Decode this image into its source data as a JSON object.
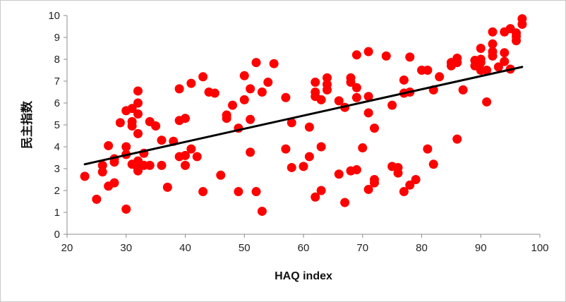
{
  "chart_data": {
    "type": "scatter",
    "title": "",
    "xlabel": "HAQ index",
    "ylabel": "民主指数",
    "xlim": [
      20,
      100
    ],
    "ylim": [
      0,
      10
    ],
    "x_ticks": [
      "20",
      "30",
      "40",
      "50",
      "60",
      "70",
      "80",
      "90",
      "100"
    ],
    "y_ticks": [
      "0",
      "1",
      "2",
      "3",
      "4",
      "5",
      "6",
      "7",
      "8",
      "9",
      "10"
    ],
    "grid": false,
    "legend": "none",
    "marker_color": "#ff0000",
    "trendline": {
      "type": "linear",
      "color": "#000000",
      "x": [
        23,
        97
      ],
      "y": [
        3.2,
        7.65
      ]
    },
    "points": [
      [
        23,
        2.65
      ],
      [
        25,
        1.6
      ],
      [
        26,
        3.15
      ],
      [
        26,
        2.85
      ],
      [
        27,
        4.05
      ],
      [
        27,
        2.2
      ],
      [
        28,
        3.45
      ],
      [
        28,
        3.3
      ],
      [
        28,
        2.35
      ],
      [
        29,
        5.1
      ],
      [
        30,
        5.65
      ],
      [
        30,
        4.0
      ],
      [
        30,
        3.65
      ],
      [
        30,
        1.15
      ],
      [
        31,
        5.75
      ],
      [
        31,
        5.15
      ],
      [
        31,
        4.95
      ],
      [
        31,
        3.2
      ],
      [
        32,
        6.55
      ],
      [
        32,
        6.0
      ],
      [
        32,
        5.5
      ],
      [
        32,
        4.6
      ],
      [
        32,
        3.35
      ],
      [
        32,
        3.0
      ],
      [
        32,
        2.9
      ],
      [
        33,
        3.7
      ],
      [
        33,
        3.15
      ],
      [
        34,
        5.15
      ],
      [
        34,
        3.15
      ],
      [
        35,
        4.95
      ],
      [
        36,
        4.3
      ],
      [
        36,
        3.15
      ],
      [
        37,
        2.15
      ],
      [
        38,
        4.25
      ],
      [
        39,
        6.65
      ],
      [
        39,
        5.2
      ],
      [
        39,
        3.55
      ],
      [
        40,
        5.3
      ],
      [
        40,
        3.6
      ],
      [
        40,
        3.15
      ],
      [
        41,
        6.9
      ],
      [
        41,
        3.9
      ],
      [
        42,
        3.55
      ],
      [
        43,
        7.2
      ],
      [
        43,
        1.95
      ],
      [
        44,
        6.5
      ],
      [
        45,
        6.45
      ],
      [
        46,
        2.7
      ],
      [
        47,
        5.45
      ],
      [
        47,
        5.3
      ],
      [
        48,
        5.9
      ],
      [
        49,
        4.85
      ],
      [
        49,
        1.95
      ],
      [
        50,
        7.25
      ],
      [
        50,
        6.15
      ],
      [
        51,
        6.65
      ],
      [
        51,
        5.25
      ],
      [
        51,
        3.75
      ],
      [
        52,
        7.85
      ],
      [
        52,
        1.95
      ],
      [
        53,
        6.5
      ],
      [
        53,
        1.05
      ],
      [
        54,
        6.95
      ],
      [
        55,
        7.8
      ],
      [
        57,
        6.25
      ],
      [
        57,
        3.9
      ],
      [
        58,
        5.1
      ],
      [
        58,
        3.05
      ],
      [
        60,
        3.1
      ],
      [
        61,
        4.9
      ],
      [
        61,
        3.55
      ],
      [
        62,
        6.95
      ],
      [
        62,
        6.5
      ],
      [
        62,
        6.3
      ],
      [
        62,
        1.7
      ],
      [
        63,
        6.15
      ],
      [
        63,
        4.0
      ],
      [
        63,
        2.0
      ],
      [
        64,
        7.15
      ],
      [
        64,
        6.85
      ],
      [
        64,
        6.6
      ],
      [
        66,
        6.1
      ],
      [
        66,
        2.75
      ],
      [
        67,
        5.8
      ],
      [
        67,
        1.45
      ],
      [
        68,
        7.15
      ],
      [
        68,
        6.95
      ],
      [
        68,
        2.9
      ],
      [
        69,
        8.2
      ],
      [
        69,
        6.7
      ],
      [
        69,
        6.25
      ],
      [
        69,
        2.95
      ],
      [
        70,
        3.95
      ],
      [
        71,
        8.35
      ],
      [
        71,
        6.3
      ],
      [
        71,
        5.55
      ],
      [
        71,
        2.05
      ],
      [
        72,
        4.85
      ],
      [
        72,
        2.5
      ],
      [
        72,
        2.35
      ],
      [
        74,
        8.15
      ],
      [
        75,
        5.9
      ],
      [
        75,
        3.1
      ],
      [
        76,
        3.05
      ],
      [
        76,
        2.8
      ],
      [
        77,
        7.05
      ],
      [
        77,
        6.45
      ],
      [
        77,
        1.95
      ],
      [
        78,
        8.1
      ],
      [
        78,
        6.5
      ],
      [
        78,
        2.25
      ],
      [
        79,
        2.5
      ],
      [
        80,
        7.5
      ],
      [
        81,
        7.5
      ],
      [
        81,
        3.9
      ],
      [
        82,
        6.6
      ],
      [
        82,
        3.2
      ],
      [
        83,
        7.2
      ],
      [
        85,
        7.85
      ],
      [
        85,
        7.7
      ],
      [
        86,
        8.05
      ],
      [
        86,
        7.85
      ],
      [
        86,
        4.35
      ],
      [
        87,
        6.6
      ],
      [
        89,
        7.95
      ],
      [
        89,
        7.7
      ],
      [
        90,
        8.5
      ],
      [
        90,
        8.0
      ],
      [
        90,
        7.85
      ],
      [
        90,
        7.5
      ],
      [
        91,
        7.5
      ],
      [
        91,
        6.05
      ],
      [
        92,
        9.25
      ],
      [
        92,
        8.7
      ],
      [
        92,
        8.35
      ],
      [
        92,
        8.15
      ],
      [
        93,
        7.65
      ],
      [
        94,
        9.25
      ],
      [
        94,
        8.3
      ],
      [
        94,
        7.9
      ],
      [
        95,
        9.4
      ],
      [
        95,
        7.55
      ],
      [
        96,
        9.2
      ],
      [
        96,
        9.05
      ],
      [
        96,
        8.85
      ],
      [
        97,
        9.85
      ],
      [
        97,
        9.6
      ]
    ]
  }
}
